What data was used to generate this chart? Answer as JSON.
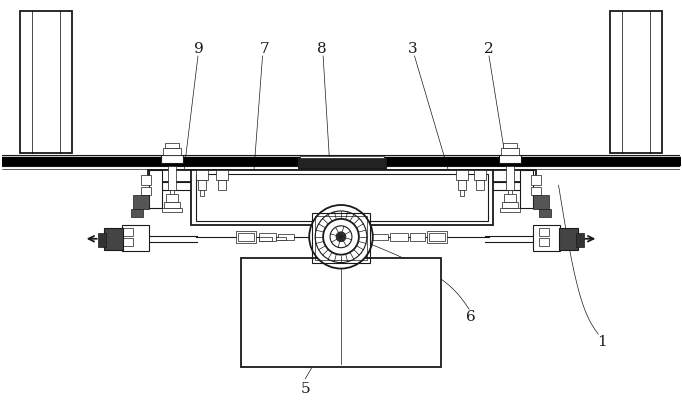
{
  "bg_color": "#ffffff",
  "line_color": "#1a1a1a",
  "fig_width": 6.82,
  "fig_height": 4.09,
  "dpi": 100,
  "label_fontsize": 11
}
